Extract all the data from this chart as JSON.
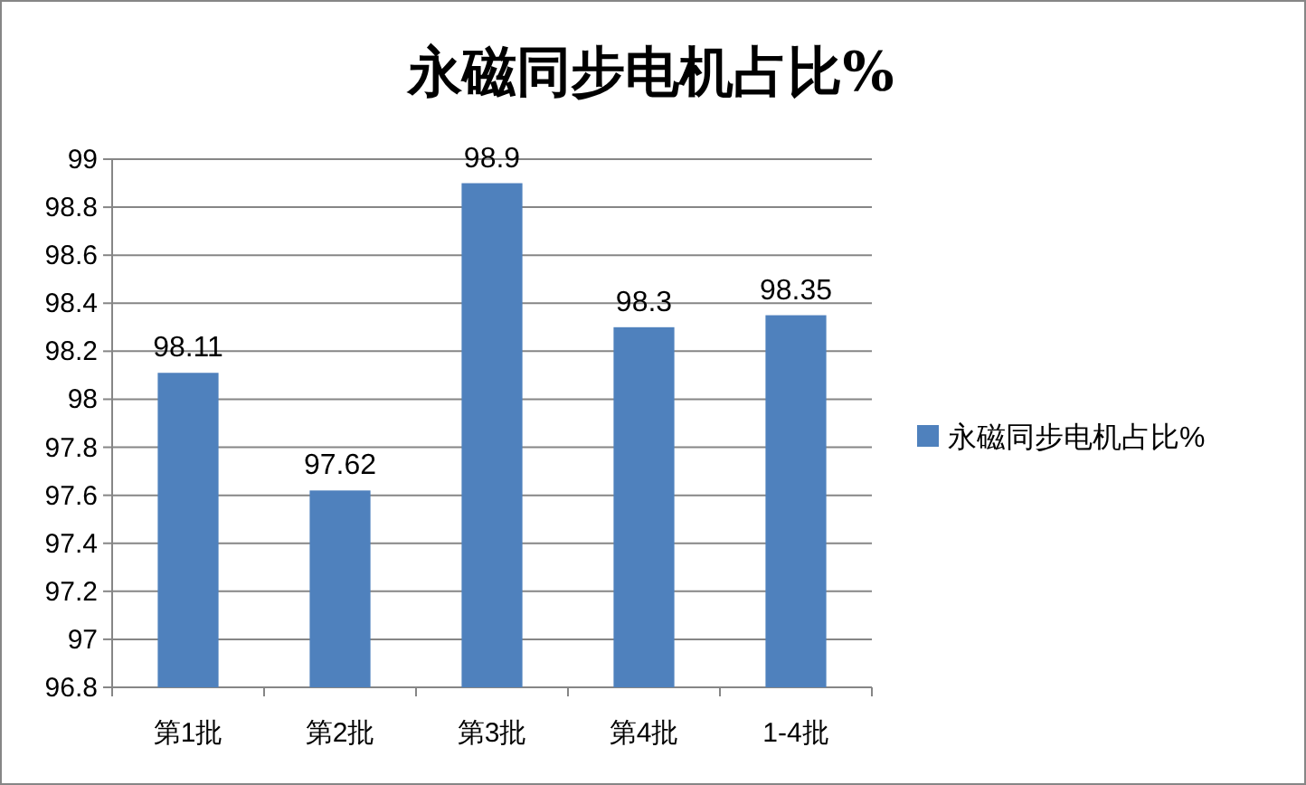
{
  "chart_data": {
    "type": "bar",
    "title": "永磁同步电机占比%",
    "categories": [
      "第1批",
      "第2批",
      "第3批",
      "第4批",
      "1-4批"
    ],
    "series": [
      {
        "name": "永磁同步电机占比%",
        "color": "#4f81bd",
        "values": [
          98.11,
          97.62,
          98.9,
          98.3,
          98.35
        ]
      }
    ],
    "ylim": [
      96.8,
      99
    ],
    "yticks": [
      96.8,
      97,
      97.2,
      97.4,
      97.6,
      97.8,
      98,
      98.2,
      98.4,
      98.6,
      98.8,
      99
    ],
    "grid": "y",
    "legend": "right",
    "data_labels": true
  }
}
